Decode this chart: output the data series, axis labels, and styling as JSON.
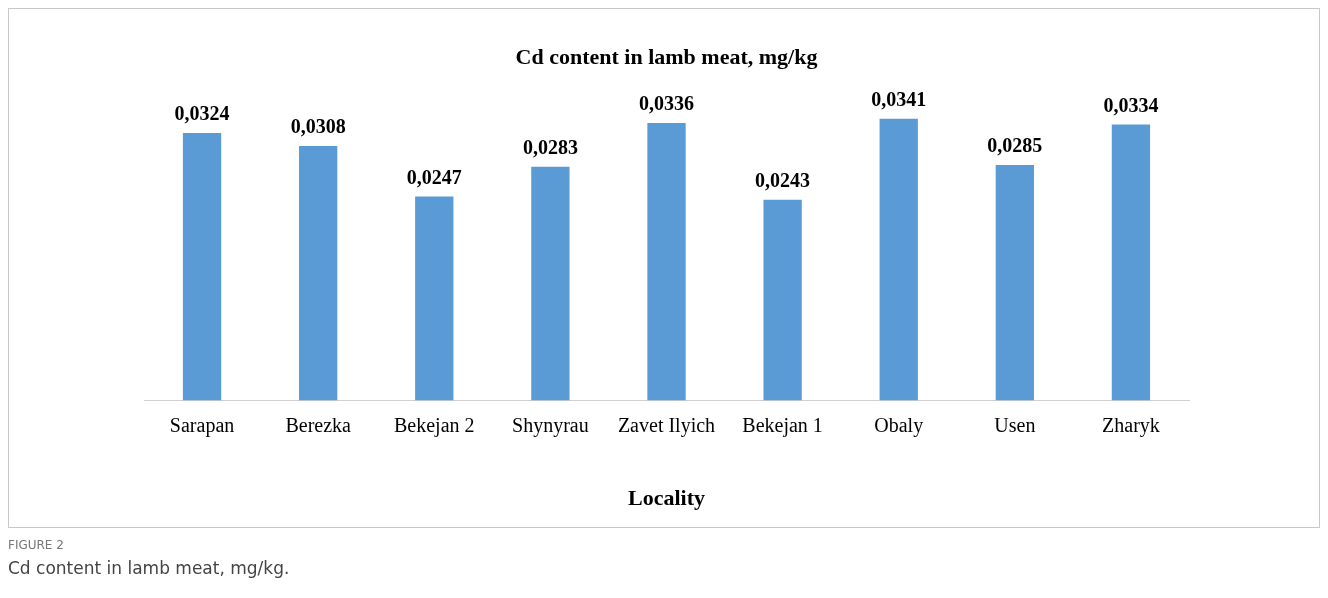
{
  "chart_data": {
    "type": "bar",
    "title": "Cd content in lamb meat, mg/kg",
    "xlabel": "Locality",
    "categories": [
      "Sarapan",
      "Berezka",
      "Bekejan 2",
      "Shynyrau",
      "Zavet Ilyich",
      "Bekejan 1",
      "Obaly",
      "Usen",
      "Zharyk"
    ],
    "values": [
      0.0324,
      0.0308,
      0.0247,
      0.0283,
      0.0336,
      0.0243,
      0.0341,
      0.0285,
      0.0334
    ],
    "value_labels": [
      "0,0324",
      "0,0308",
      "0,0247",
      "0,0283",
      "0,0336",
      "0,0243",
      "0,0341",
      "0,0285",
      "0,0334"
    ],
    "color": "#5b9bd5",
    "grid": false,
    "legend": false,
    "annotations": [
      "FIGURE 2",
      "Cd content in lamb meat, mg/kg."
    ]
  }
}
